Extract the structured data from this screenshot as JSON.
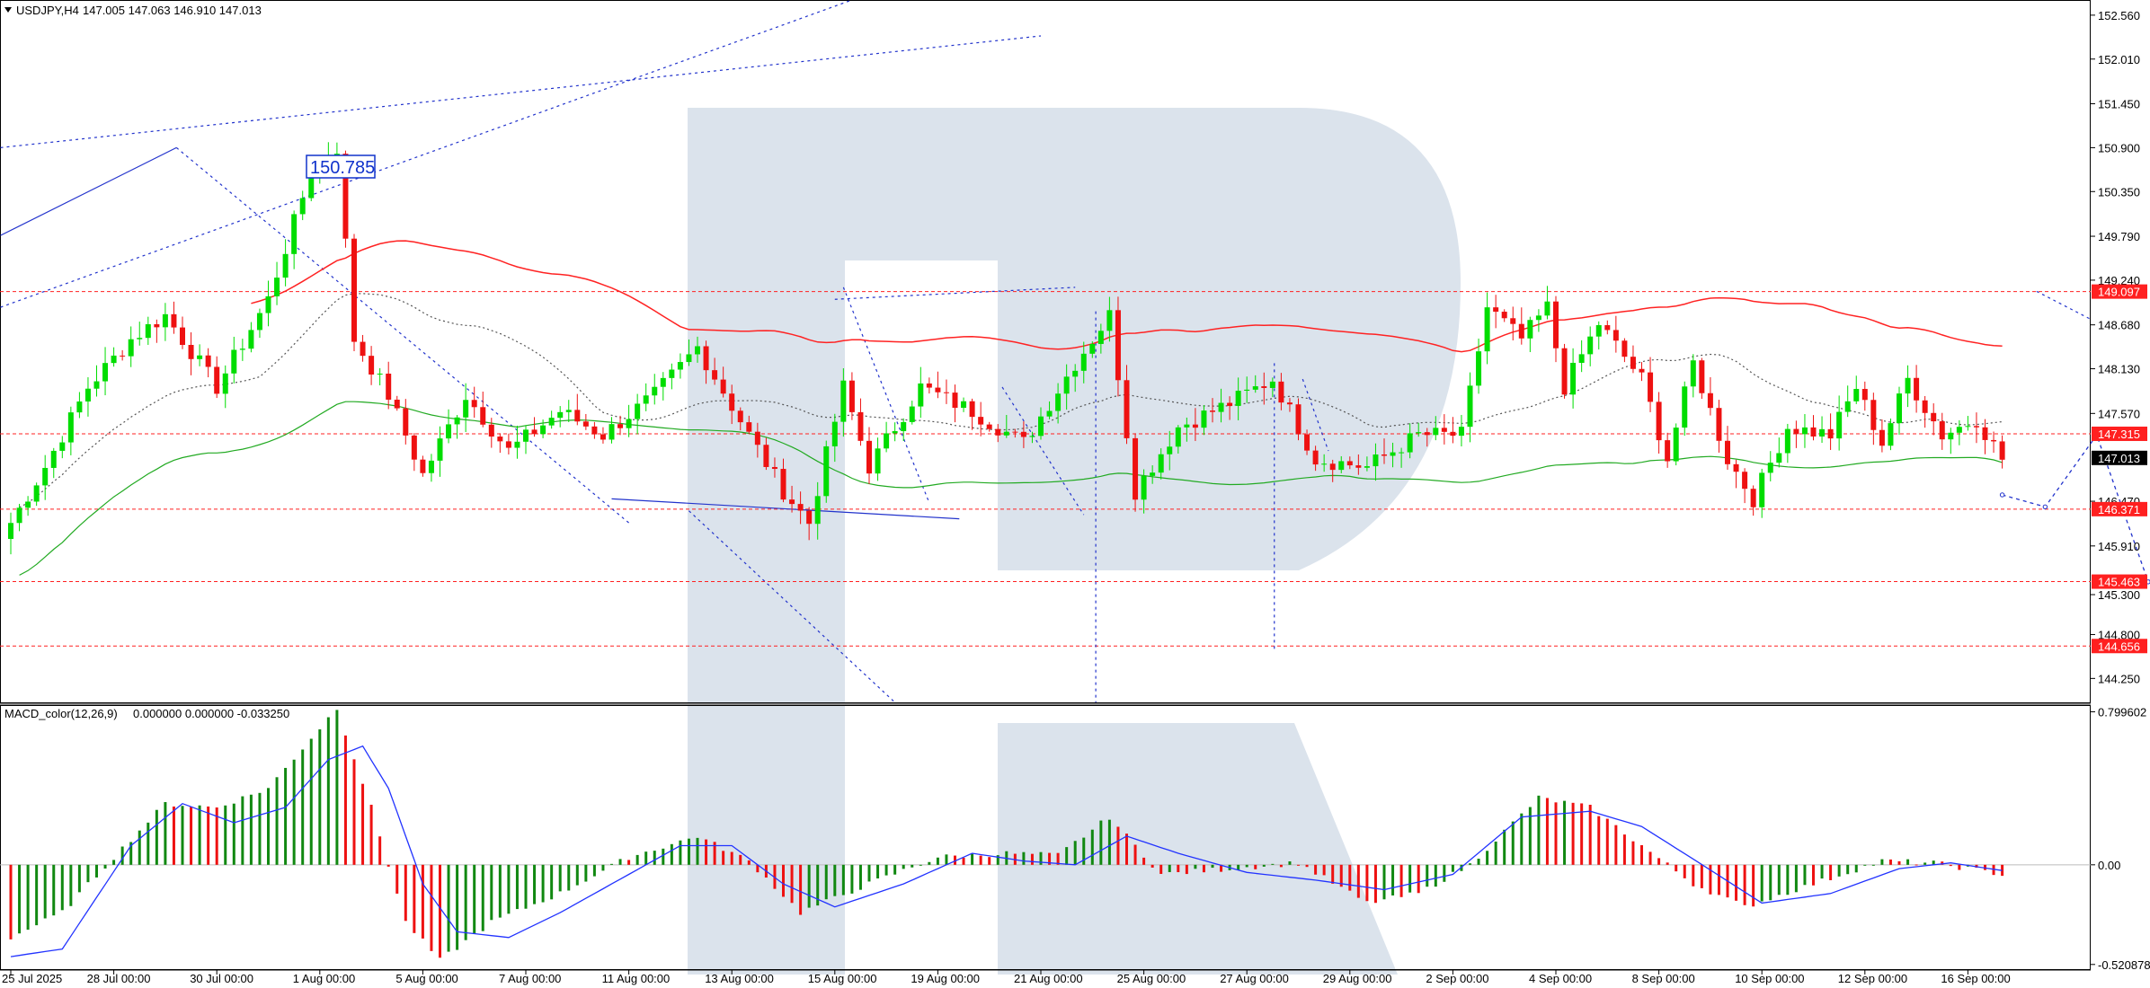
{
  "header": {
    "symbol": "USDJPY,H4",
    "ohlc": "147.005 147.063 146.910 147.013"
  },
  "macd_header": {
    "name": "MACD_color(12,26,9)",
    "values": "0.000000 0.000000 -0.033250"
  },
  "annotation_label": "150.785",
  "colors": {
    "bull": "#00dd00",
    "bear": "#ee1111",
    "ma_red": "#ff2222",
    "ma_dotted": "#555555",
    "ma_green": "#22aa22",
    "trend_blue": "#2233cc",
    "level_red": "#ff2020",
    "macd_signal": "#2233ff",
    "macd_pos": "#118811",
    "macd_neg": "#ee1111",
    "watermark": "#dbe3ec"
  },
  "chart_data": [
    {
      "type": "candlestick",
      "title": "USDJPY,H4",
      "ylim": [
        143.95,
        152.75
      ],
      "price_ticks": [
        "152.560",
        "152.010",
        "151.450",
        "150.900",
        "150.350",
        "149.790",
        "149.240",
        "148.680",
        "148.130",
        "147.570",
        "146.470",
        "145.910",
        "145.300",
        "144.800",
        "144.250"
      ],
      "price_tick_values": [
        152.56,
        152.01,
        151.45,
        150.9,
        150.35,
        149.79,
        149.24,
        148.68,
        148.13,
        147.57,
        146.47,
        145.91,
        145.3,
        144.8,
        144.25
      ],
      "x_labels": [
        "25 Jul 2025",
        "28 Jul 00:00",
        "30 Jul 00:00",
        "1 Aug 00:00",
        "5 Aug 00:00",
        "7 Aug 00:00",
        "11 Aug 00:00",
        "13 Aug 00:00",
        "15 Aug 00:00",
        "19 Aug 00:00",
        "21 Aug 00:00",
        "25 Aug 00:00",
        "27 Aug 00:00",
        "29 Aug 00:00",
        "2 Sep 00:00",
        "4 Sep 00:00",
        "8 Sep 00:00",
        "10 Sep 00:00",
        "12 Sep 00:00",
        "16 Sep 00:00"
      ],
      "x_label_bars": [
        0,
        12,
        24,
        36,
        48,
        60,
        72,
        84,
        96,
        108,
        120,
        132,
        144,
        156,
        168,
        180,
        192,
        204,
        216,
        228
      ],
      "key_levels": [
        {
          "label": "149.097",
          "value": 149.097
        },
        {
          "label": "147.315",
          "value": 147.315
        },
        {
          "label": "146.371",
          "value": 146.371
        },
        {
          "label": "145.463",
          "value": 145.463
        },
        {
          "label": "144.656",
          "value": 144.656
        }
      ],
      "current_price": {
        "label": "147.013",
        "value": 147.013
      },
      "pivots": [
        {
          "bar": 0,
          "price": 146.2
        },
        {
          "bar": 4,
          "price": 146.9
        },
        {
          "bar": 9,
          "price": 147.9
        },
        {
          "bar": 14,
          "price": 148.5
        },
        {
          "bar": 18,
          "price": 148.8
        },
        {
          "bar": 24,
          "price": 147.9
        },
        {
          "bar": 30,
          "price": 149.0
        },
        {
          "bar": 35,
          "price": 150.6
        },
        {
          "bar": 38,
          "price": 150.9
        },
        {
          "bar": 40,
          "price": 148.5
        },
        {
          "bar": 44,
          "price": 147.8
        },
        {
          "bar": 48,
          "price": 146.8
        },
        {
          "bar": 53,
          "price": 147.8
        },
        {
          "bar": 58,
          "price": 147.1
        },
        {
          "bar": 64,
          "price": 147.6
        },
        {
          "bar": 69,
          "price": 147.3
        },
        {
          "bar": 75,
          "price": 147.8
        },
        {
          "bar": 80,
          "price": 148.4
        },
        {
          "bar": 86,
          "price": 147.3
        },
        {
          "bar": 90,
          "price": 146.6
        },
        {
          "bar": 93,
          "price": 146.2
        },
        {
          "bar": 97,
          "price": 147.9
        },
        {
          "bar": 100,
          "price": 146.9
        },
        {
          "bar": 106,
          "price": 147.9
        },
        {
          "bar": 112,
          "price": 147.6
        },
        {
          "bar": 118,
          "price": 147.2
        },
        {
          "bar": 124,
          "price": 148.2
        },
        {
          "bar": 128,
          "price": 148.8
        },
        {
          "bar": 131,
          "price": 146.6
        },
        {
          "bar": 136,
          "price": 147.4
        },
        {
          "bar": 142,
          "price": 147.7
        },
        {
          "bar": 147,
          "price": 148.0
        },
        {
          "bar": 152,
          "price": 147.0
        },
        {
          "bar": 158,
          "price": 146.9
        },
        {
          "bar": 164,
          "price": 147.3
        },
        {
          "bar": 169,
          "price": 147.3
        },
        {
          "bar": 172,
          "price": 148.9
        },
        {
          "bar": 176,
          "price": 148.5
        },
        {
          "bar": 179,
          "price": 148.9
        },
        {
          "bar": 181,
          "price": 147.9
        },
        {
          "bar": 185,
          "price": 148.7
        },
        {
          "bar": 190,
          "price": 148.0
        },
        {
          "bar": 193,
          "price": 147.0
        },
        {
          "bar": 196,
          "price": 148.2
        },
        {
          "bar": 200,
          "price": 147.0
        },
        {
          "bar": 203,
          "price": 146.5
        },
        {
          "bar": 207,
          "price": 147.4
        },
        {
          "bar": 212,
          "price": 147.3
        },
        {
          "bar": 215,
          "price": 147.9
        },
        {
          "bar": 218,
          "price": 147.2
        },
        {
          "bar": 221,
          "price": 148.0
        },
        {
          "bar": 225,
          "price": 147.3
        },
        {
          "bar": 229,
          "price": 147.5
        },
        {
          "bar": 232,
          "price": 147.0
        }
      ],
      "forecast_path": [
        {
          "bar": 232,
          "price": 146.55
        },
        {
          "bar": 237,
          "price": 146.4
        },
        {
          "bar": 243,
          "price": 147.3
        },
        {
          "bar": 249,
          "price": 145.46
        },
        {
          "bar": 254,
          "price": 146.35
        },
        {
          "bar": 258,
          "price": 144.656
        },
        {
          "bar": 264,
          "price": 145.55
        },
        {
          "bar": 272,
          "price": 146.4
        },
        {
          "bar": 280,
          "price": 143.95
        }
      ]
    },
    {
      "type": "histogram",
      "title": "MACD_color(12,26,9)",
      "ylim": [
        -0.55,
        0.83
      ],
      "ticks": [
        "0.799602",
        "0.00",
        "-0.520878"
      ],
      "tick_values": [
        0.799602,
        0.0,
        -0.520878
      ],
      "pivots": [
        {
          "bar": 0,
          "value": -0.38
        },
        {
          "bar": 6,
          "value": -0.25
        },
        {
          "bar": 12,
          "value": 0.04
        },
        {
          "bar": 18,
          "value": 0.32
        },
        {
          "bar": 24,
          "value": 0.3
        },
        {
          "bar": 30,
          "value": 0.4
        },
        {
          "bar": 38,
          "value": 0.82
        },
        {
          "bar": 42,
          "value": 0.3
        },
        {
          "bar": 46,
          "value": -0.3
        },
        {
          "bar": 50,
          "value": -0.5
        },
        {
          "bar": 56,
          "value": -0.3
        },
        {
          "bar": 64,
          "value": -0.15
        },
        {
          "bar": 72,
          "value": 0.04
        },
        {
          "bar": 80,
          "value": 0.15
        },
        {
          "bar": 86,
          "value": 0.02
        },
        {
          "bar": 92,
          "value": -0.25
        },
        {
          "bar": 100,
          "value": -0.1
        },
        {
          "bar": 108,
          "value": 0.04
        },
        {
          "bar": 116,
          "value": 0.06
        },
        {
          "bar": 122,
          "value": 0.05
        },
        {
          "bar": 128,
          "value": 0.25
        },
        {
          "bar": 134,
          "value": -0.05
        },
        {
          "bar": 142,
          "value": -0.02
        },
        {
          "bar": 150,
          "value": 0.01
        },
        {
          "bar": 158,
          "value": -0.2
        },
        {
          "bar": 164,
          "value": -0.15
        },
        {
          "bar": 170,
          "value": 0.0
        },
        {
          "bar": 178,
          "value": 0.35
        },
        {
          "bar": 184,
          "value": 0.3
        },
        {
          "bar": 190,
          "value": 0.1
        },
        {
          "bar": 196,
          "value": -0.1
        },
        {
          "bar": 202,
          "value": -0.22
        },
        {
          "bar": 210,
          "value": -0.1
        },
        {
          "bar": 218,
          "value": 0.02
        },
        {
          "bar": 224,
          "value": 0.01
        },
        {
          "bar": 232,
          "value": -0.05
        }
      ],
      "signal_pivots": [
        {
          "bar": 0,
          "value": -0.48
        },
        {
          "bar": 6,
          "value": -0.44
        },
        {
          "bar": 14,
          "value": 0.1
        },
        {
          "bar": 20,
          "value": 0.32
        },
        {
          "bar": 26,
          "value": 0.22
        },
        {
          "bar": 32,
          "value": 0.3
        },
        {
          "bar": 37,
          "value": 0.55
        },
        {
          "bar": 41,
          "value": 0.62
        },
        {
          "bar": 44,
          "value": 0.4
        },
        {
          "bar": 48,
          "value": -0.1
        },
        {
          "bar": 52,
          "value": -0.35
        },
        {
          "bar": 58,
          "value": -0.38
        },
        {
          "bar": 64,
          "value": -0.25
        },
        {
          "bar": 72,
          "value": -0.05
        },
        {
          "bar": 78,
          "value": 0.1
        },
        {
          "bar": 84,
          "value": 0.1
        },
        {
          "bar": 90,
          "value": -0.1
        },
        {
          "bar": 96,
          "value": -0.22
        },
        {
          "bar": 104,
          "value": -0.1
        },
        {
          "bar": 112,
          "value": 0.06
        },
        {
          "bar": 118,
          "value": 0.02
        },
        {
          "bar": 124,
          "value": 0.0
        },
        {
          "bar": 130,
          "value": 0.15
        },
        {
          "bar": 136,
          "value": 0.06
        },
        {
          "bar": 144,
          "value": -0.04
        },
        {
          "bar": 152,
          "value": -0.08
        },
        {
          "bar": 160,
          "value": -0.13
        },
        {
          "bar": 168,
          "value": -0.05
        },
        {
          "bar": 176,
          "value": 0.25
        },
        {
          "bar": 184,
          "value": 0.28
        },
        {
          "bar": 190,
          "value": 0.2
        },
        {
          "bar": 196,
          "value": 0.03
        },
        {
          "bar": 204,
          "value": -0.2
        },
        {
          "bar": 212,
          "value": -0.15
        },
        {
          "bar": 220,
          "value": -0.02
        },
        {
          "bar": 226,
          "value": 0.01
        },
        {
          "bar": 232,
          "value": -0.03
        }
      ]
    }
  ]
}
